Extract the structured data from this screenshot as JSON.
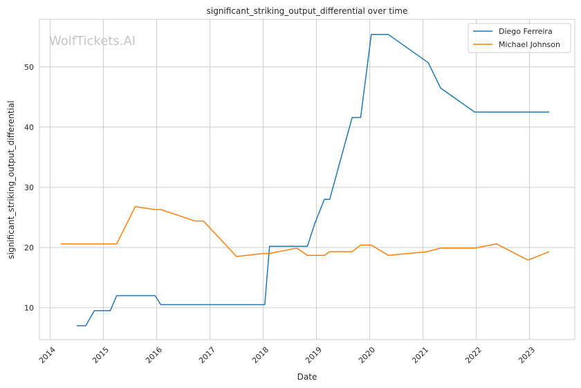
{
  "chart_data": {
    "type": "line",
    "title": "significant_striking_output_differential over time",
    "xlabel": "Date",
    "ylabel": "significant_striking_output_differential",
    "watermark": "WolfTickets.AI",
    "xlim": [
      2013.8,
      2023.85
    ],
    "ylim": [
      4.7,
      57.9
    ],
    "x_ticks": [
      {
        "value": 2014,
        "label": "2014"
      },
      {
        "value": 2015,
        "label": "2015"
      },
      {
        "value": 2016,
        "label": "2016"
      },
      {
        "value": 2017,
        "label": "2017"
      },
      {
        "value": 2018,
        "label": "2018"
      },
      {
        "value": 2019,
        "label": "2019"
      },
      {
        "value": 2020,
        "label": "2020"
      },
      {
        "value": 2021,
        "label": "2021"
      },
      {
        "value": 2022,
        "label": "2022"
      },
      {
        "value": 2023,
        "label": "2023"
      }
    ],
    "y_ticks": [
      {
        "value": 10,
        "label": "10"
      },
      {
        "value": 20,
        "label": "20"
      },
      {
        "value": 30,
        "label": "30"
      },
      {
        "value": 40,
        "label": "40"
      },
      {
        "value": 50,
        "label": "50"
      }
    ],
    "grid": true,
    "legend_position": "top-right",
    "series": [
      {
        "name": "Diego Ferreira",
        "color": "#1f77b4",
        "points": [
          [
            2014.5,
            7.0
          ],
          [
            2014.67,
            7.0
          ],
          [
            2014.83,
            9.5
          ],
          [
            2015.13,
            9.5
          ],
          [
            2015.25,
            12.0
          ],
          [
            2015.97,
            12.0
          ],
          [
            2016.08,
            10.5
          ],
          [
            2018.03,
            10.5
          ],
          [
            2018.12,
            20.2
          ],
          [
            2018.83,
            20.2
          ],
          [
            2018.97,
            24.0
          ],
          [
            2019.15,
            28.0
          ],
          [
            2019.25,
            28.0
          ],
          [
            2019.67,
            41.6
          ],
          [
            2019.83,
            41.6
          ],
          [
            2020.03,
            55.4
          ],
          [
            2020.35,
            55.4
          ],
          [
            2021.1,
            50.7
          ],
          [
            2021.33,
            46.5
          ],
          [
            2021.97,
            42.5
          ],
          [
            2023.37,
            42.5
          ]
        ]
      },
      {
        "name": "Michael Johnson",
        "color": "#ff7f0e",
        "points": [
          [
            2014.2,
            20.6
          ],
          [
            2015.25,
            20.6
          ],
          [
            2015.6,
            26.8
          ],
          [
            2015.97,
            26.3
          ],
          [
            2016.08,
            26.3
          ],
          [
            2016.72,
            24.4
          ],
          [
            2016.88,
            24.4
          ],
          [
            2017.5,
            18.5
          ],
          [
            2018.0,
            19.0
          ],
          [
            2018.12,
            19.0
          ],
          [
            2018.63,
            19.9
          ],
          [
            2018.83,
            18.7
          ],
          [
            2019.15,
            18.7
          ],
          [
            2019.25,
            19.3
          ],
          [
            2019.67,
            19.3
          ],
          [
            2019.83,
            20.4
          ],
          [
            2020.03,
            20.4
          ],
          [
            2020.35,
            18.7
          ],
          [
            2021.08,
            19.3
          ],
          [
            2021.33,
            19.9
          ],
          [
            2021.97,
            19.9
          ],
          [
            2022.38,
            20.6
          ],
          [
            2022.97,
            17.9
          ],
          [
            2023.37,
            19.3
          ]
        ]
      }
    ]
  }
}
